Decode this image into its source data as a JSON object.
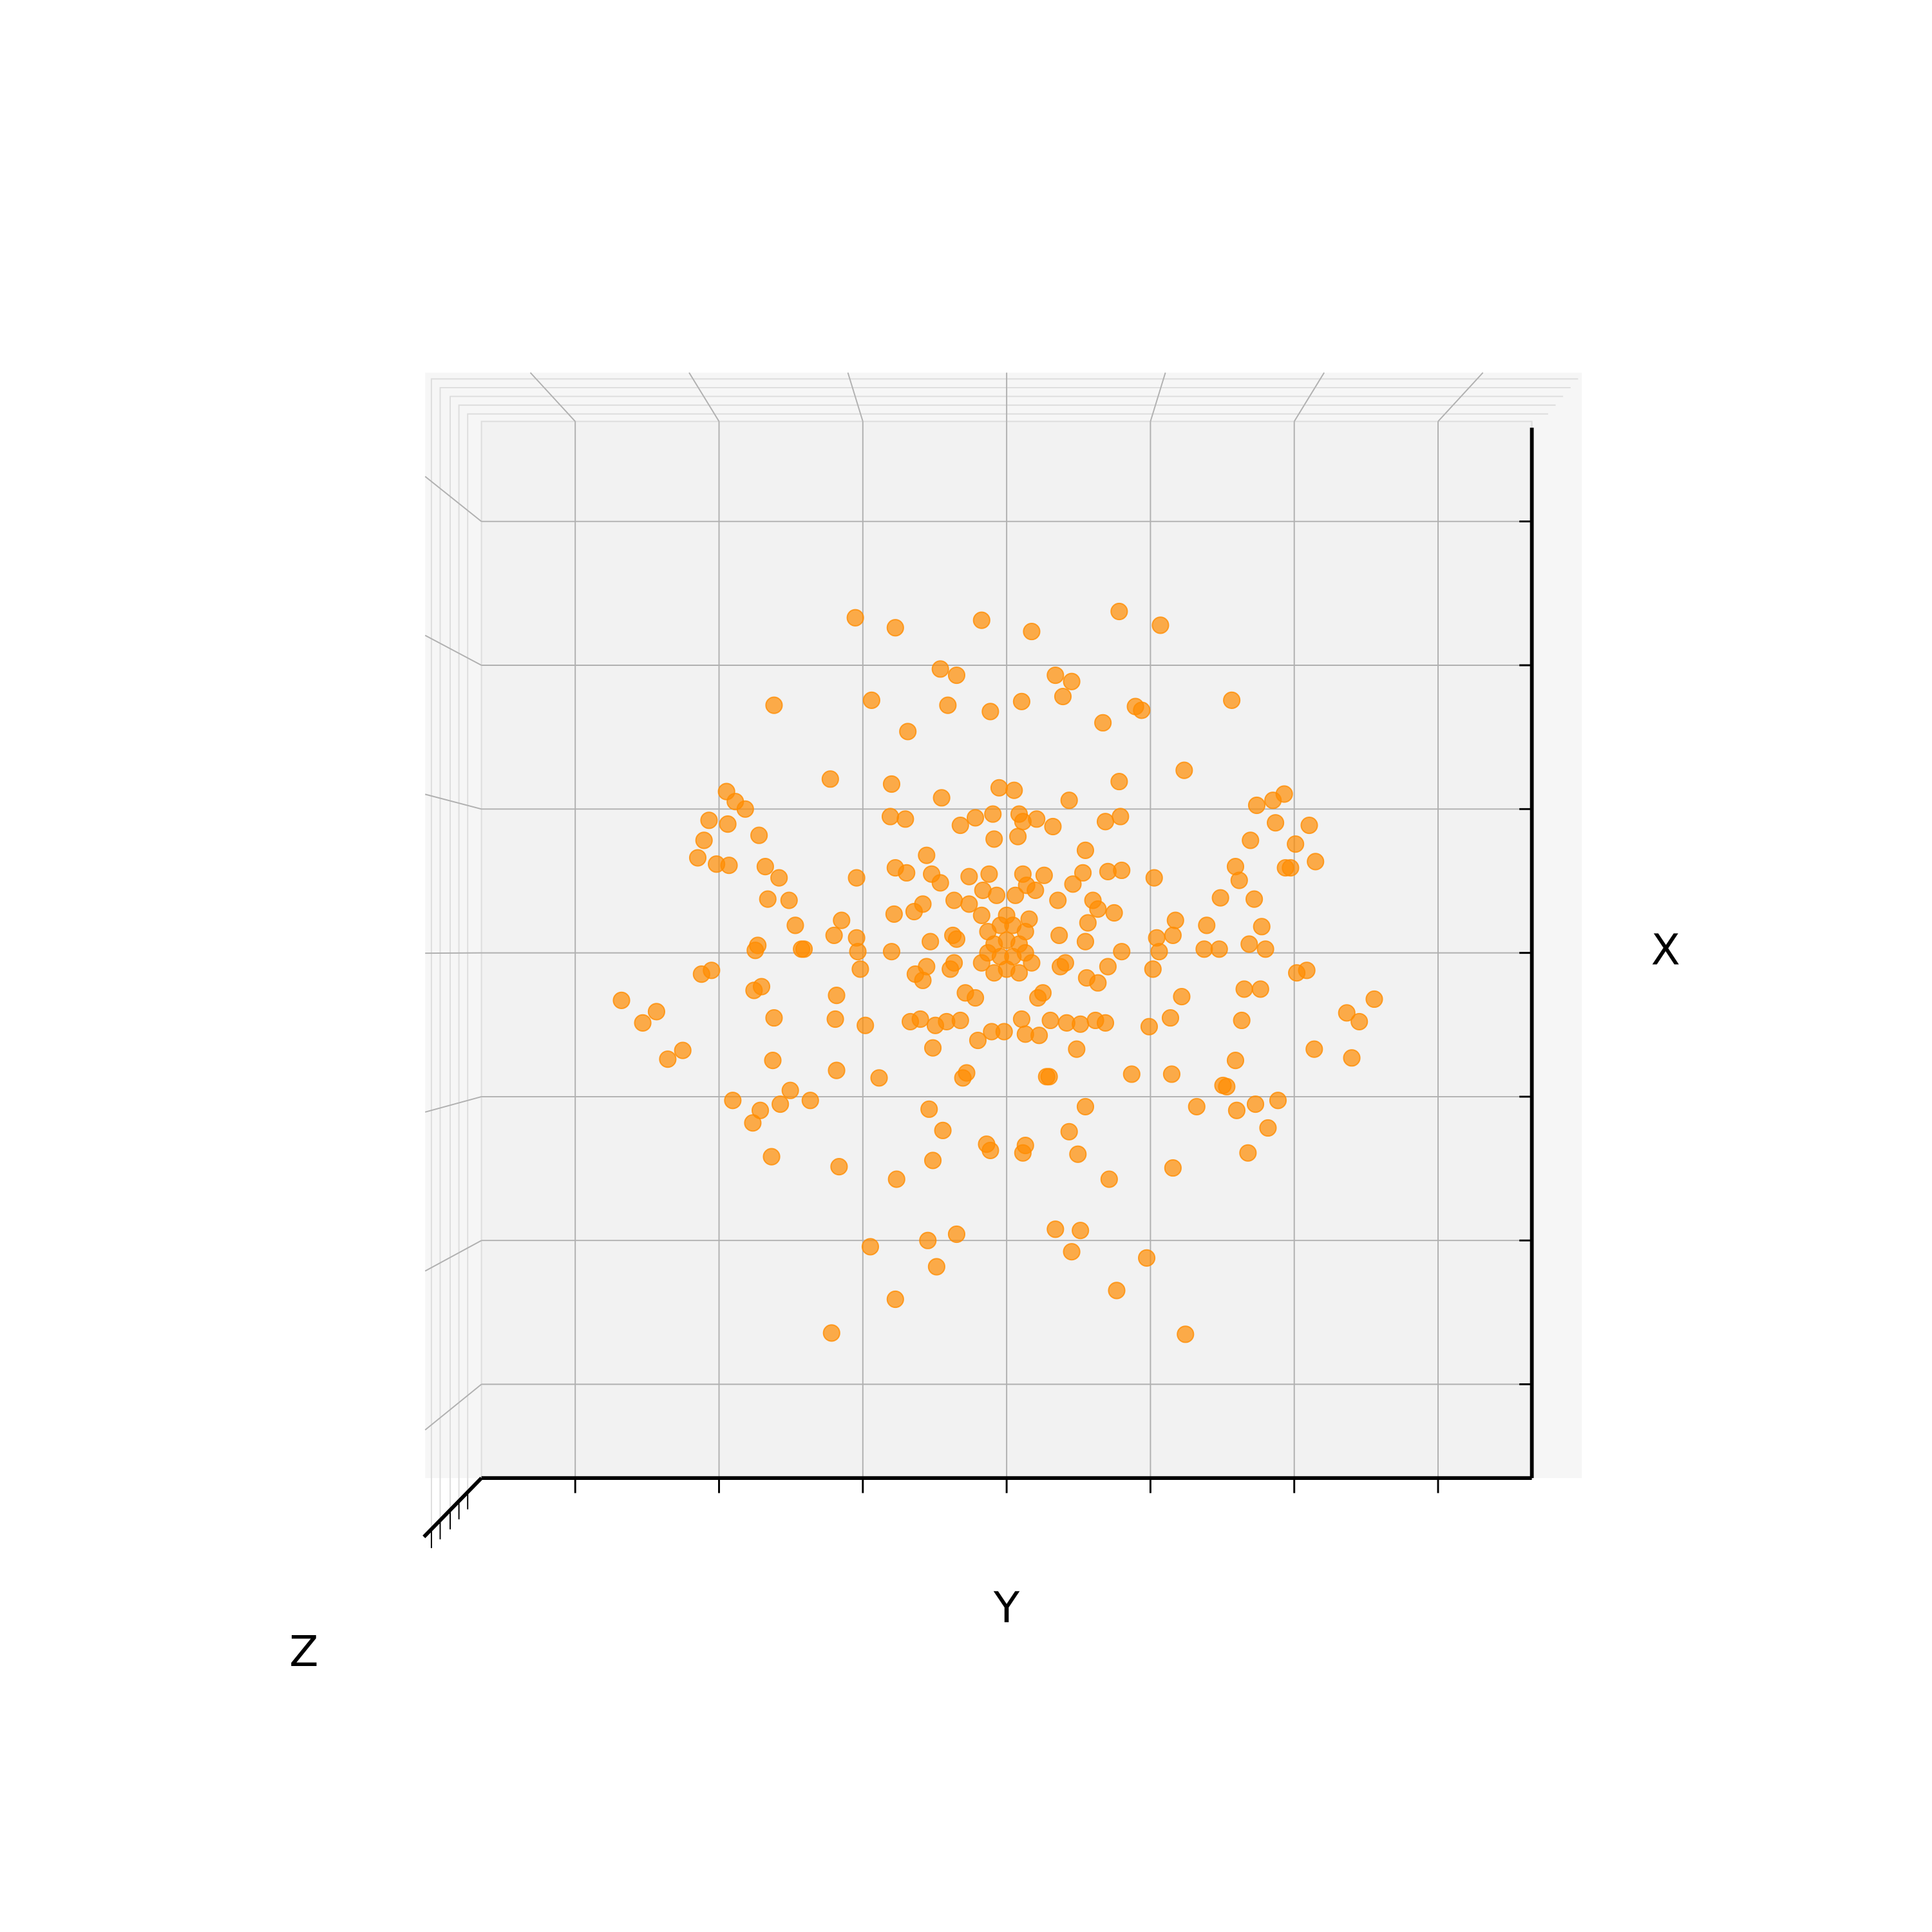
{
  "chart_data": {
    "type": "scatter",
    "xlabel": "Y",
    "ylabel": "X",
    "zlabel": "Z",
    "grid": true,
    "color": "#ff8c00",
    "xlim": [
      -420,
      420
    ],
    "ylim": [
      -420,
      425
    ],
    "xticks": [
      -345,
      -230,
      -115,
      0,
      115,
      230,
      345
    ],
    "yticks": [
      -345,
      -230,
      -115,
      0,
      115,
      230,
      345
    ],
    "x": [
      -121,
      -89,
      -20,
      20,
      90,
      123,
      -53,
      -40,
      39,
      52,
      45,
      -186,
      -108,
      -47,
      -13,
      12,
      77,
      103,
      108,
      180,
      -79,
      -141,
      -92,
      -52,
      -6,
      6,
      50,
      90,
      142,
      -224,
      -217,
      -209,
      -238,
      -223,
      -242,
      -247,
      -232,
      -222,
      -198,
      -93,
      -81,
      -37,
      -25,
      -11,
      10,
      13,
      24,
      37,
      -10,
      9,
      79,
      91,
      200,
      213,
      222,
      215,
      242,
      195,
      231,
      247,
      223,
      227,
      183,
      186,
      -64,
      -89,
      -80,
      -60,
      -53,
      -14,
      -30,
      13,
      30,
      63,
      61,
      81,
      92,
      118,
      -120,
      -193,
      -182,
      -191,
      -174,
      -169,
      -132,
      -138,
      -120,
      -199,
      -201,
      -164,
      -162,
      -119,
      -92,
      -90,
      -74,
      -67,
      -42,
      -30,
      -19,
      -8,
      7,
      16,
      23,
      41,
      53,
      69,
      73,
      86,
      65,
      -20,
      0,
      18,
      -61,
      -43,
      -40,
      42,
      63,
      92,
      120,
      135,
      133,
      160,
      158,
      171,
      198,
      204,
      194,
      207,
      170,
      122,
      -15,
      -5,
      5,
      15,
      -10,
      0,
      10,
      -15,
      -5,
      5,
      15,
      -20,
      20,
      0,
      -10,
      10,
      -45,
      -42,
      -64,
      -73,
      -67,
      43,
      47,
      64,
      73,
      81,
      117,
      -117,
      -244,
      -236,
      -202,
      -196,
      -136,
      -33,
      -25,
      25,
      29,
      140,
      190,
      203,
      232,
      240,
      294,
      272,
      282,
      276,
      246,
      -308,
      -280,
      -291,
      -259,
      -271,
      -186,
      -137,
      -113,
      -77,
      -69,
      -57,
      -48,
      -37,
      -23,
      -12,
      -2,
      12,
      15,
      26,
      35,
      48,
      59,
      71,
      79,
      114,
      131,
      188,
      -59,
      56,
      -187,
      -136,
      -102,
      -35,
      -32,
      32,
      34,
      100,
      132,
      183,
      173,
      176,
      -219,
      -197,
      -181,
      -173,
      -157,
      -203,
      -62,
      63,
      152,
      184,
      199,
      217,
      209,
      -51,
      50,
      -16,
      -13,
      13,
      15,
      57,
      -188,
      -134,
      -59,
      133,
      193,
      -88,
      82,
      39,
      59,
      -40,
      -63,
      -109,
      52,
      112,
      -56,
      88,
      -89,
      -140,
      143
    ],
    "values": [
      268,
      260,
      266,
      257,
      273,
      262,
      227,
      222,
      222,
      217,
      205,
      198,
      202,
      198,
      193,
      201,
      184,
      197,
      194,
      202,
      177,
      139,
      135,
      124,
      132,
      130,
      122,
      137,
      146,
      129,
      121,
      115,
      106,
      103,
      90,
      76,
      71,
      70,
      94,
      109,
      107,
      102,
      108,
      111,
      111,
      105,
      107,
      101,
      91,
      93,
      105,
      109,
      118,
      122,
      127,
      104,
      102,
      90,
      87,
      73,
      68,
      68,
      69,
      58,
      78,
      68,
      64,
      63,
      56,
      63,
      61,
      63,
      62,
      82,
      64,
      65,
      66,
      60,
      60,
      69,
      60,
      43,
      42,
      22,
      26,
      14,
      12,
      6,
      2,
      3,
      3,
      1,
      1,
      31,
      33,
      39,
      42,
      39,
      50,
      46,
      46,
      54,
      50,
      42,
      55,
      42,
      35,
      32,
      24,
      30,
      30,
      27,
      9,
      14,
      11,
      14,
      9,
      1,
      12,
      26,
      14,
      22,
      3,
      44,
      43,
      21,
      7,
      3,
      3,
      1,
      17,
      22,
      22,
      17,
      7,
      10,
      7,
      0,
      -3,
      -3,
      0,
      -8,
      -8,
      -13,
      -16,
      -16,
      -13,
      -8,
      -11,
      -17,
      -22,
      -11,
      -8,
      -20,
      -24,
      -11,
      -13,
      -13,
      -17,
      -14,
      -30,
      -27,
      -34,
      -32,
      -36,
      -36,
      -32,
      -35,
      -29,
      -29,
      -16,
      -14,
      -37,
      -48,
      -55,
      -84,
      -77,
      -38,
      -47,
      -56,
      -78,
      -85,
      -52,
      -53,
      -58,
      -55,
      -53,
      -58,
      -55,
      -54,
      -70,
      -63,
      -63,
      -53,
      -65,
      -66,
      -54,
      -56,
      -57,
      -54,
      -56,
      -59,
      -52,
      -54,
      -76,
      -77,
      -86,
      -94,
      -100,
      -100,
      -96,
      -99,
      -99,
      -97,
      -97,
      -86,
      -106,
      -107,
      -118,
      -126,
      -121,
      -110,
      -118,
      -136,
      -125,
      -123,
      -123,
      -126,
      -121,
      -118,
      -140,
      -142,
      -143,
      -153,
      -158,
      -160,
      -154,
      -161,
      -163,
      -171,
      -166,
      -172,
      -160,
      -181,
      -181,
      -221,
      -222,
      -225,
      -230,
      -235,
      -239,
      -244,
      -251,
      -270,
      -277,
      -304,
      -305
    ]
  }
}
